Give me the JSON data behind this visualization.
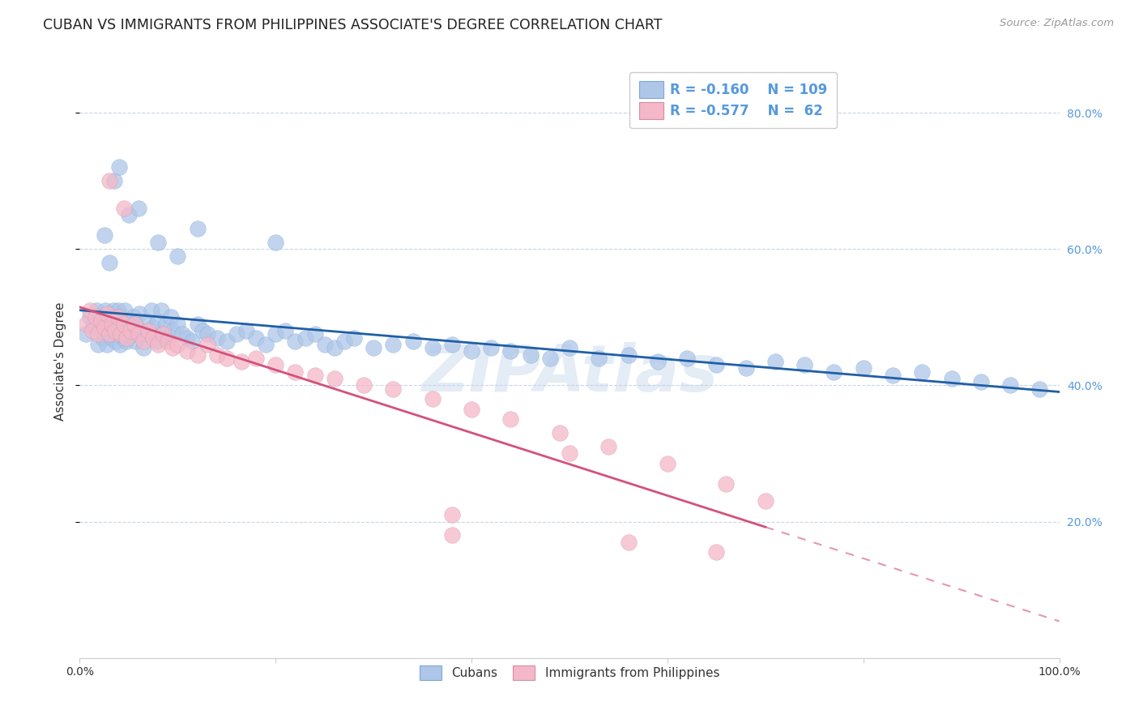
{
  "title": "CUBAN VS IMMIGRANTS FROM PHILIPPINES ASSOCIATE'S DEGREE CORRELATION CHART",
  "source": "Source: ZipAtlas.com",
  "ylabel": "Associate's Degree",
  "xlim": [
    0,
    1.0
  ],
  "ylim": [
    0,
    0.87
  ],
  "yticks": [
    0.2,
    0.4,
    0.6,
    0.8
  ],
  "ytick_labels": [
    "20.0%",
    "40.0%",
    "60.0%",
    "80.0%"
  ],
  "xtick_positions": [
    0.0,
    0.2,
    0.4,
    0.6,
    0.8,
    1.0
  ],
  "xtick_labels": [
    "0.0%",
    "",
    "",
    "",
    "",
    "100.0%"
  ],
  "cuban_color": "#aec6e8",
  "philippines_color": "#f4b8c8",
  "cuban_line_color": "#1f5fa6",
  "philippines_line_color": "#d4517a",
  "legend_r_cuban": "-0.160",
  "legend_n_cuban": "109",
  "legend_r_philippines": "-0.577",
  "legend_n_philippines": " 62",
  "watermark": "ZIPAtlas",
  "background_color": "#ffffff",
  "grid_color": "#c8d4e8",
  "right_ytick_color": "#5599dd",
  "title_fontsize": 12.5,
  "axis_label_fontsize": 11,
  "tick_fontsize": 10,
  "cuban_scatter_x": [
    0.006,
    0.01,
    0.014,
    0.017,
    0.019,
    0.021,
    0.022,
    0.024,
    0.025,
    0.026,
    0.028,
    0.03,
    0.031,
    0.032,
    0.033,
    0.034,
    0.035,
    0.036,
    0.037,
    0.038,
    0.039,
    0.04,
    0.041,
    0.042,
    0.044,
    0.045,
    0.046,
    0.047,
    0.048,
    0.05,
    0.052,
    0.053,
    0.055,
    0.057,
    0.059,
    0.061,
    0.063,
    0.065,
    0.068,
    0.07,
    0.073,
    0.075,
    0.078,
    0.08,
    0.083,
    0.085,
    0.088,
    0.09,
    0.093,
    0.095,
    0.1,
    0.105,
    0.11,
    0.115,
    0.12,
    0.125,
    0.13,
    0.14,
    0.15,
    0.16,
    0.17,
    0.18,
    0.19,
    0.2,
    0.21,
    0.22,
    0.23,
    0.24,
    0.25,
    0.26,
    0.27,
    0.28,
    0.3,
    0.32,
    0.34,
    0.36,
    0.38,
    0.4,
    0.42,
    0.44,
    0.46,
    0.48,
    0.5,
    0.53,
    0.56,
    0.59,
    0.62,
    0.65,
    0.68,
    0.71,
    0.74,
    0.77,
    0.8,
    0.83,
    0.86,
    0.89,
    0.92,
    0.95,
    0.98
  ],
  "cuban_scatter_y": [
    0.475,
    0.5,
    0.49,
    0.51,
    0.46,
    0.48,
    0.5,
    0.47,
    0.49,
    0.51,
    0.46,
    0.5,
    0.475,
    0.49,
    0.47,
    0.51,
    0.48,
    0.5,
    0.465,
    0.49,
    0.51,
    0.48,
    0.46,
    0.5,
    0.49,
    0.47,
    0.51,
    0.48,
    0.465,
    0.495,
    0.49,
    0.475,
    0.5,
    0.465,
    0.485,
    0.505,
    0.475,
    0.455,
    0.495,
    0.475,
    0.51,
    0.485,
    0.465,
    0.495,
    0.51,
    0.475,
    0.49,
    0.47,
    0.5,
    0.48,
    0.49,
    0.475,
    0.47,
    0.465,
    0.49,
    0.48,
    0.475,
    0.47,
    0.465,
    0.475,
    0.48,
    0.47,
    0.46,
    0.475,
    0.48,
    0.465,
    0.47,
    0.475,
    0.46,
    0.455,
    0.465,
    0.47,
    0.455,
    0.46,
    0.465,
    0.455,
    0.46,
    0.45,
    0.455,
    0.45,
    0.445,
    0.44,
    0.455,
    0.44,
    0.445,
    0.435,
    0.44,
    0.43,
    0.425,
    0.435,
    0.43,
    0.42,
    0.425,
    0.415,
    0.42,
    0.41,
    0.405,
    0.4,
    0.395
  ],
  "cuban_scatter_y_extra": [
    0.62,
    0.58,
    0.7,
    0.72,
    0.65,
    0.66,
    0.61,
    0.59,
    0.63,
    0.61
  ],
  "cuban_scatter_x_extra": [
    0.025,
    0.03,
    0.035,
    0.04,
    0.05,
    0.06,
    0.08,
    0.1,
    0.12,
    0.2
  ],
  "philippines_scatter_x": [
    0.006,
    0.01,
    0.013,
    0.016,
    0.019,
    0.022,
    0.025,
    0.028,
    0.03,
    0.033,
    0.036,
    0.039,
    0.042,
    0.045,
    0.048,
    0.052,
    0.056,
    0.06,
    0.065,
    0.07,
    0.075,
    0.08,
    0.085,
    0.09,
    0.095,
    0.1,
    0.11,
    0.12,
    0.13,
    0.14,
    0.15,
    0.165,
    0.18,
    0.2,
    0.22,
    0.24,
    0.26,
    0.29,
    0.32,
    0.36,
    0.4,
    0.44,
    0.49,
    0.54,
    0.6,
    0.66,
    0.7
  ],
  "philippines_scatter_y": [
    0.49,
    0.51,
    0.48,
    0.5,
    0.475,
    0.495,
    0.485,
    0.505,
    0.475,
    0.49,
    0.48,
    0.5,
    0.475,
    0.49,
    0.47,
    0.48,
    0.49,
    0.475,
    0.465,
    0.48,
    0.47,
    0.46,
    0.475,
    0.465,
    0.455,
    0.46,
    0.45,
    0.445,
    0.46,
    0.445,
    0.44,
    0.435,
    0.44,
    0.43,
    0.42,
    0.415,
    0.41,
    0.4,
    0.395,
    0.38,
    0.365,
    0.35,
    0.33,
    0.31,
    0.285,
    0.255,
    0.23
  ],
  "philippines_scatter_y_extra": [
    0.7,
    0.66,
    0.3,
    0.17,
    0.18,
    0.155,
    0.21
  ],
  "philippines_scatter_x_extra": [
    0.03,
    0.045,
    0.5,
    0.56,
    0.38,
    0.65,
    0.38
  ]
}
